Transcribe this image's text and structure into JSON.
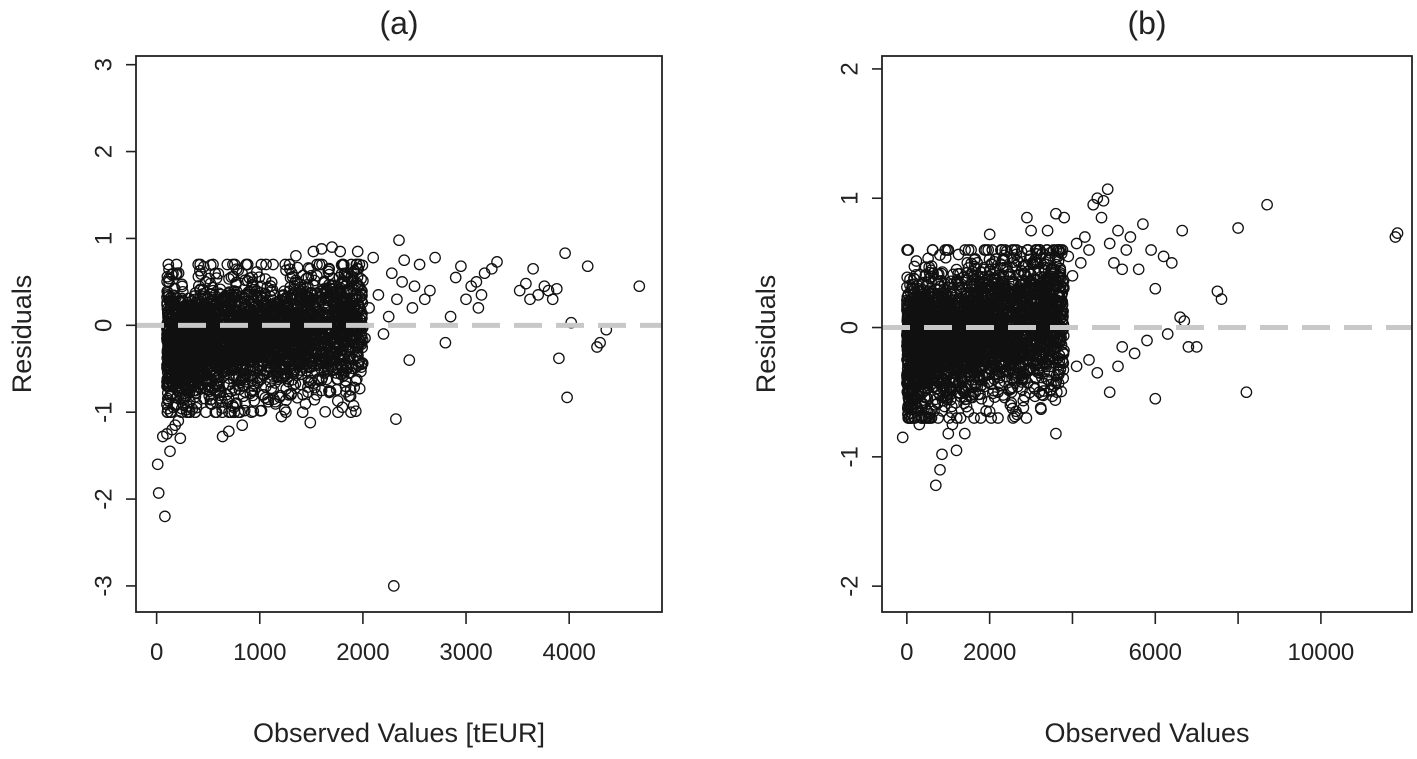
{
  "chart_data": [
    {
      "type": "scatter",
      "title": "(a)",
      "xlabel": "Observed Values [tEUR]",
      "ylabel": "Residuals",
      "xlim": [
        -200,
        4900
      ],
      "ylim": [
        -3.3,
        3.1
      ],
      "xticks": [
        0,
        1000,
        2000,
        3000,
        4000
      ],
      "xtick_labels": [
        "0",
        "1000",
        "2000",
        "3000",
        "4000"
      ],
      "yticks": [
        -3,
        -2,
        -1,
        0,
        1,
        2,
        3
      ],
      "ytick_labels": [
        "-3",
        "-2",
        "-1",
        "0",
        "1",
        "2",
        "3"
      ],
      "reference_line": {
        "y": 0,
        "style": "dashed",
        "color": "#c8c8c8"
      },
      "dense_cluster": {
        "x_range": [
          100,
          2000
        ],
        "y_range": [
          -1.0,
          0.7
        ],
        "approx_points": 2600
      },
      "points": [
        [
          10,
          -1.6
        ],
        [
          20,
          -1.93
        ],
        [
          80,
          -2.2
        ],
        [
          60,
          -1.28
        ],
        [
          100,
          -1.25
        ],
        [
          130,
          -1.45
        ],
        [
          150,
          -1.2
        ],
        [
          180,
          -1.15
        ],
        [
          210,
          -1.1
        ],
        [
          230,
          -1.3
        ],
        [
          640,
          -1.28
        ],
        [
          700,
          -1.22
        ],
        [
          830,
          -1.15
        ],
        [
          1030,
          -0.8
        ],
        [
          1080,
          -0.85
        ],
        [
          1210,
          -1.05
        ],
        [
          1490,
          -1.12
        ],
        [
          1550,
          -0.8
        ],
        [
          1600,
          -0.75
        ],
        [
          1750,
          -0.62
        ],
        [
          2300,
          -3.0
        ],
        [
          2320,
          -1.08
        ],
        [
          2450,
          -0.4
        ],
        [
          2800,
          -0.2
        ],
        [
          3900,
          -0.38
        ],
        [
          3980,
          -0.83
        ],
        [
          4020,
          0.03
        ],
        [
          4270,
          -0.25
        ],
        [
          4300,
          -0.2
        ],
        [
          4360,
          -0.05
        ],
        [
          4680,
          0.45
        ],
        [
          4180,
          0.68
        ],
        [
          3960,
          0.83
        ],
        [
          3650,
          0.65
        ],
        [
          3520,
          0.4
        ],
        [
          3580,
          0.48
        ],
        [
          3620,
          0.3
        ],
        [
          3700,
          0.35
        ],
        [
          3760,
          0.45
        ],
        [
          3800,
          0.4
        ],
        [
          3840,
          0.3
        ],
        [
          3880,
          0.42
        ],
        [
          3300,
          0.73
        ],
        [
          3250,
          0.65
        ],
        [
          3180,
          0.6
        ],
        [
          3150,
          0.35
        ],
        [
          3120,
          0.2
        ],
        [
          3100,
          0.5
        ],
        [
          3050,
          0.45
        ],
        [
          3000,
          0.3
        ],
        [
          2950,
          0.68
        ],
        [
          2900,
          0.55
        ],
        [
          2850,
          0.1
        ],
        [
          2700,
          0.78
        ],
        [
          2650,
          0.4
        ],
        [
          2600,
          0.3
        ],
        [
          2550,
          0.7
        ],
        [
          2500,
          0.45
        ],
        [
          2480,
          0.2
        ],
        [
          2400,
          0.75
        ],
        [
          2380,
          0.5
        ],
        [
          2350,
          0.98
        ],
        [
          2330,
          0.3
        ],
        [
          2280,
          0.6
        ],
        [
          2250,
          0.1
        ],
        [
          2200,
          -0.1
        ],
        [
          2150,
          0.35
        ],
        [
          2100,
          0.78
        ],
        [
          2060,
          0.2
        ],
        [
          2020,
          -0.15
        ],
        [
          1950,
          0.85
        ],
        [
          1900,
          -0.05
        ],
        [
          1850,
          0.6
        ],
        [
          1780,
          0.85
        ],
        [
          1700,
          0.9
        ],
        [
          1650,
          -0.4
        ],
        [
          1600,
          0.88
        ],
        [
          1520,
          0.85
        ],
        [
          1470,
          -0.6
        ],
        [
          1420,
          -0.45
        ],
        [
          1350,
          0.8
        ],
        [
          1300,
          -0.5
        ]
      ]
    },
    {
      "type": "scatter",
      "title": "(b)",
      "xlabel": "Observed Values",
      "ylabel": "Residuals",
      "xlim": [
        -600,
        12200
      ],
      "ylim": [
        -2.2,
        2.1
      ],
      "xticks": [
        0,
        2000,
        6000,
        10000
      ],
      "xtick_labels": [
        "0",
        "2000",
        "6000",
        "10000"
      ],
      "xticks_minor": [
        4000,
        8000
      ],
      "yticks": [
        -2,
        -1,
        0,
        1,
        2
      ],
      "ytick_labels": [
        "-2",
        "-1",
        "0",
        "1",
        "2"
      ],
      "reference_line": {
        "y": 0,
        "style": "dashed",
        "color": "#c8c8c8"
      },
      "dense_cluster": {
        "x_range": [
          0,
          3800
        ],
        "y_range": [
          -0.7,
          0.6
        ],
        "approx_points": 2600
      },
      "points": [
        [
          -100,
          -0.85
        ],
        [
          100,
          -0.7
        ],
        [
          300,
          -0.75
        ],
        [
          500,
          -0.65
        ],
        [
          700,
          -1.22
        ],
        [
          800,
          -1.1
        ],
        [
          850,
          -0.98
        ],
        [
          1000,
          -0.82
        ],
        [
          1100,
          -0.75
        ],
        [
          1200,
          -0.95
        ],
        [
          1400,
          -0.82
        ],
        [
          1800,
          -0.55
        ],
        [
          2000,
          -0.65
        ],
        [
          2200,
          -0.5
        ],
        [
          2500,
          -0.6
        ],
        [
          2800,
          -0.4
        ],
        [
          3200,
          -0.5
        ],
        [
          3600,
          -0.82
        ],
        [
          4100,
          -0.3
        ],
        [
          4400,
          -0.25
        ],
        [
          4600,
          -0.35
        ],
        [
          4900,
          -0.5
        ],
        [
          5100,
          -0.3
        ],
        [
          5200,
          -0.15
        ],
        [
          5500,
          -0.2
        ],
        [
          5800,
          -0.1
        ],
        [
          6000,
          -0.55
        ],
        [
          6300,
          -0.05
        ],
        [
          6600,
          0.08
        ],
        [
          6800,
          -0.15
        ],
        [
          7000,
          -0.15
        ],
        [
          8200,
          -0.5
        ],
        [
          7600,
          0.22
        ],
        [
          7500,
          0.28
        ],
        [
          6650,
          0.75
        ],
        [
          6700,
          0.05
        ],
        [
          6400,
          0.5
        ],
        [
          6200,
          0.55
        ],
        [
          6000,
          0.3
        ],
        [
          5900,
          0.6
        ],
        [
          5700,
          0.8
        ],
        [
          5600,
          0.45
        ],
        [
          5400,
          0.7
        ],
        [
          5300,
          0.6
        ],
        [
          5200,
          0.45
        ],
        [
          5100,
          0.75
        ],
        [
          5000,
          0.5
        ],
        [
          4900,
          0.65
        ],
        [
          4850,
          1.07
        ],
        [
          4750,
          0.98
        ],
        [
          4700,
          0.85
        ],
        [
          4600,
          1.0
        ],
        [
          4500,
          0.95
        ],
        [
          4400,
          0.6
        ],
        [
          4300,
          0.7
        ],
        [
          4200,
          0.5
        ],
        [
          4100,
          0.65
        ],
        [
          4000,
          0.4
        ],
        [
          3900,
          0.55
        ],
        [
          3800,
          0.85
        ],
        [
          3600,
          0.88
        ],
        [
          3400,
          0.75
        ],
        [
          3200,
          0.6
        ],
        [
          3000,
          0.75
        ],
        [
          2900,
          0.85
        ],
        [
          8000,
          0.77
        ],
        [
          8700,
          0.95
        ],
        [
          11800,
          0.7
        ],
        [
          11850,
          0.73
        ],
        [
          2000,
          0.72
        ]
      ]
    }
  ]
}
